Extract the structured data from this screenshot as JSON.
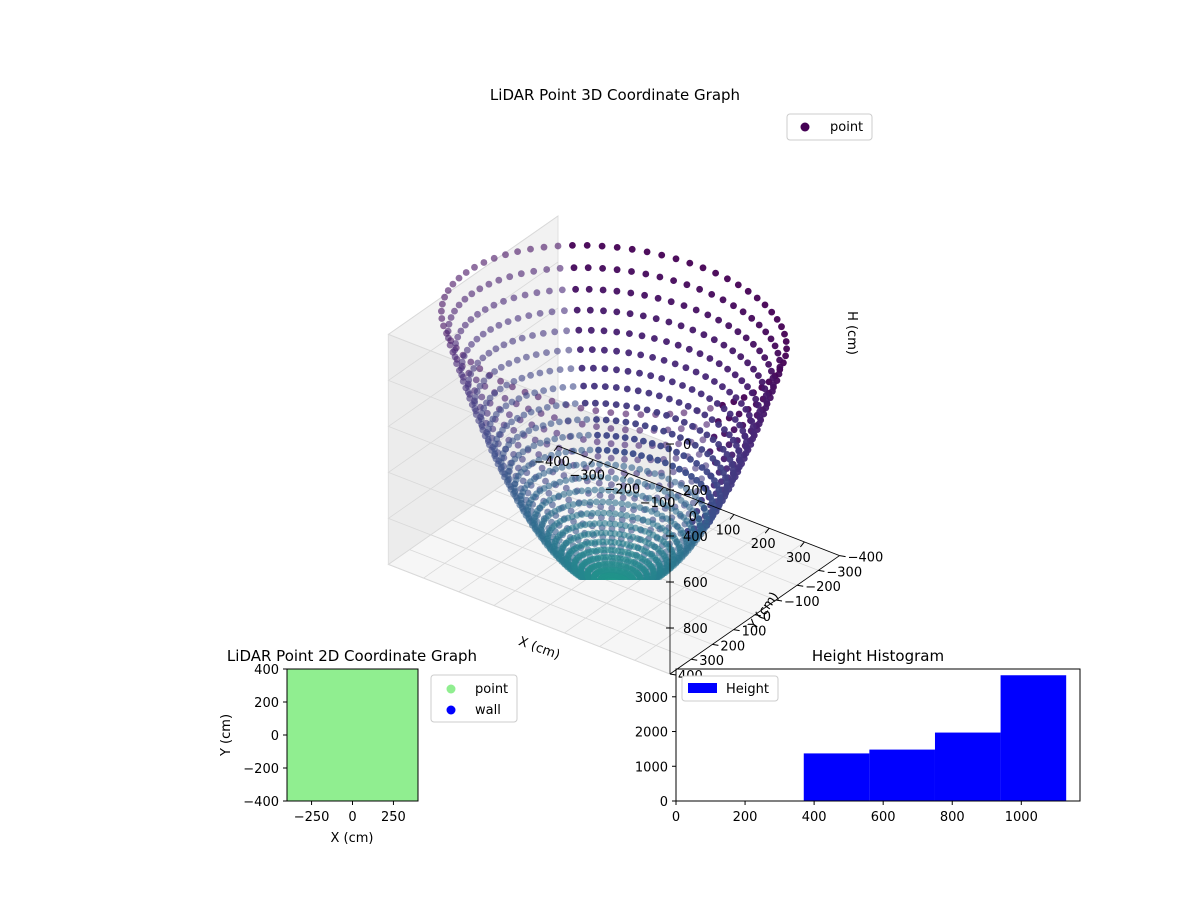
{
  "chart_data": [
    {
      "type": "scatter",
      "projection": "3d",
      "title": "LiDAR Point 3D Coordinate Graph",
      "xlabel": "X (cm)",
      "ylabel": "Y (cm)",
      "zlabel": "H (cm)",
      "xlim": [
        -400,
        400
      ],
      "ylim": [
        -400,
        400
      ],
      "zlim": [
        0,
        1000
      ],
      "z_inverted": true,
      "x_ticks": [
        -400,
        -300,
        -200,
        -100,
        0,
        100,
        200,
        300
      ],
      "x_tick_labels": [
        "−400",
        "−300",
        "−200",
        "−100",
        "0",
        "100",
        "200",
        "300"
      ],
      "y_ticks": [
        -400,
        -300,
        -200,
        -100,
        0,
        100,
        200,
        300,
        400
      ],
      "y_tick_labels": [
        "−400",
        "−300",
        "−200",
        "−100",
        "0",
        "100",
        "200",
        "300",
        "400"
      ],
      "z_ticks": [
        0,
        200,
        400,
        600,
        800
      ],
      "z_tick_labels": [
        "0",
        "200",
        "400",
        "600",
        "800"
      ],
      "legend": {
        "entries": [
          "point"
        ],
        "placement": "top-right"
      },
      "series": [
        {
          "name": "point",
          "shape": "bowl",
          "colormap": "viridis",
          "num_rays": 72,
          "rim_radius": 400,
          "rim_height": 0,
          "bottom_height": 1100
        }
      ],
      "colors": {
        "legend_marker": "#440154"
      }
    },
    {
      "type": "scatter",
      "title": "LiDAR Point 2D Coordinate Graph",
      "xlabel": "X (cm)",
      "ylabel": "Y (cm)",
      "xlim": [
        -400,
        400
      ],
      "ylim": [
        -400,
        400
      ],
      "x_ticks": [
        -250,
        0,
        250
      ],
      "x_tick_labels": [
        "−250",
        "0",
        "250"
      ],
      "y_ticks": [
        -400,
        -200,
        0,
        200,
        400
      ],
      "y_tick_labels": [
        "−400",
        "−200",
        "0",
        "200",
        "400"
      ],
      "legend": {
        "entries": [
          "point",
          "wall"
        ],
        "placement": "outside-right"
      },
      "series": [
        {
          "name": "point",
          "color": "#90ee90",
          "fills_region": [
            -400,
            400
          ]
        },
        {
          "name": "wall",
          "color": "#0000ff"
        }
      ]
    },
    {
      "type": "bar",
      "subtype": "histogram",
      "title": "Height Histogram",
      "xlim": [
        0,
        1170
      ],
      "ylim": [
        0,
        3800
      ],
      "x_ticks": [
        0,
        200,
        400,
        600,
        800,
        1000
      ],
      "x_tick_labels": [
        "0",
        "200",
        "400",
        "600",
        "800",
        "1000"
      ],
      "y_ticks": [
        0,
        1000,
        2000,
        3000
      ],
      "y_tick_labels": [
        "0",
        "1000",
        "2000",
        "3000"
      ],
      "legend": {
        "entries": [
          "Height"
        ],
        "placement": "top-left"
      },
      "series": [
        {
          "name": "Height",
          "color": "#0000ff",
          "bins": [
            {
              "start": 0,
              "end": 370,
              "count": 0
            },
            {
              "start": 370,
              "end": 560,
              "count": 1370
            },
            {
              "start": 560,
              "end": 750,
              "count": 1480
            },
            {
              "start": 750,
              "end": 940,
              "count": 1970
            },
            {
              "start": 940,
              "end": 1130,
              "count": 3620
            }
          ]
        }
      ]
    }
  ]
}
